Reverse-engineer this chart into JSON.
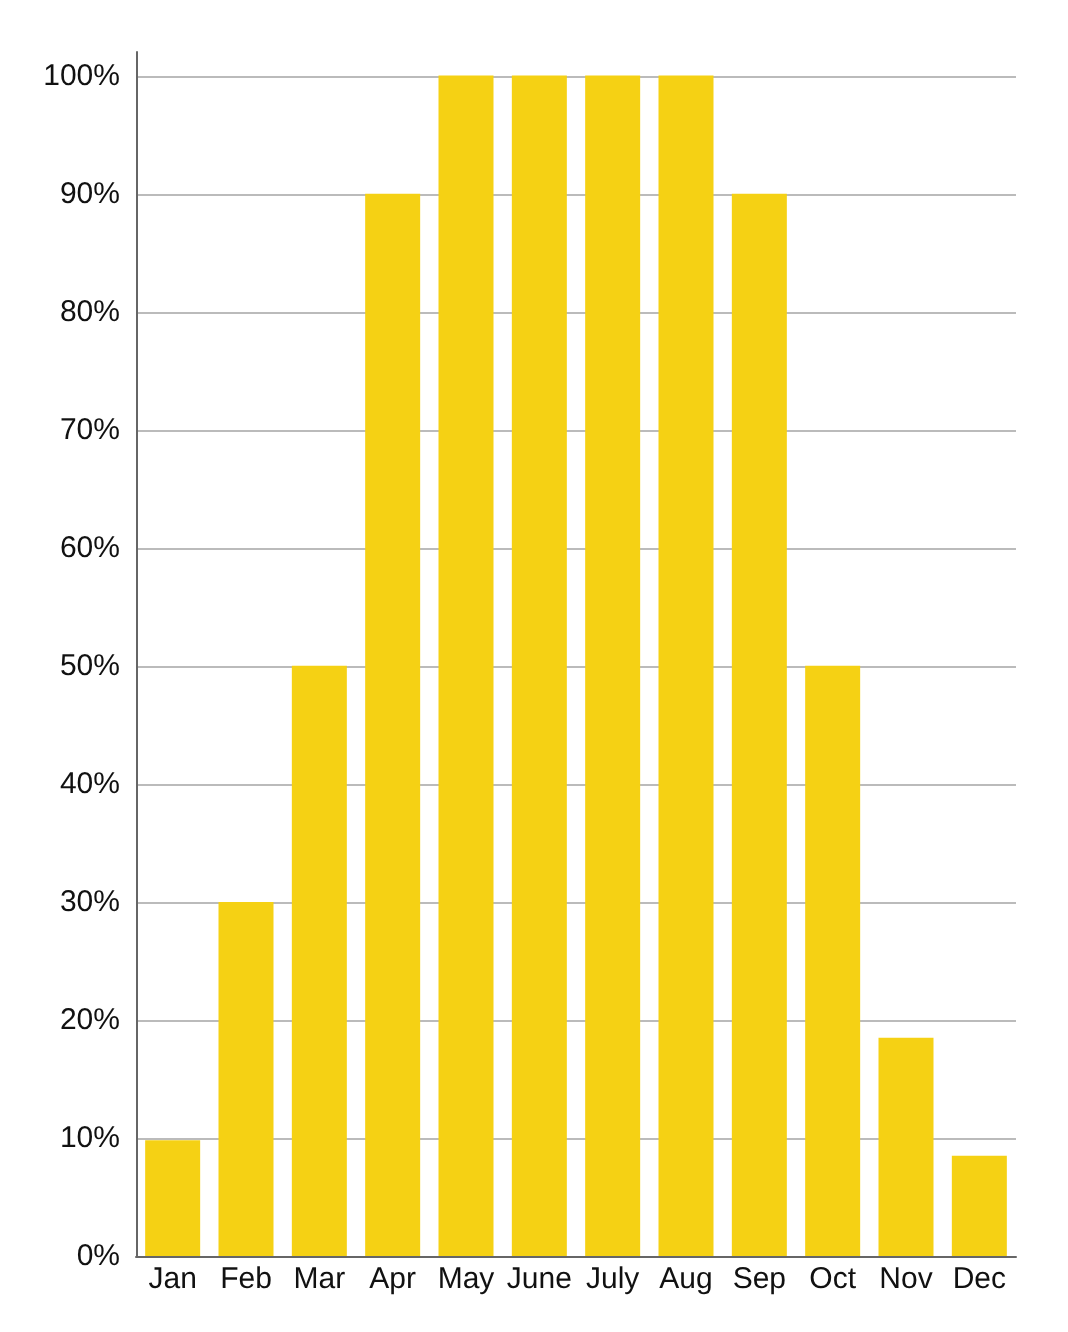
{
  "chart_data": {
    "type": "bar",
    "categories": [
      "Jan",
      "Feb",
      "Mar",
      "Apr",
      "May",
      "June",
      "July",
      "Aug",
      "Sep",
      "Oct",
      "Nov",
      "Dec"
    ],
    "values": [
      9.8,
      30,
      50,
      90,
      100,
      100,
      100,
      100,
      90,
      50,
      18.5,
      8.5
    ],
    "color": "#f5d114",
    "ylim": [
      0,
      102
    ],
    "yticks": [
      {
        "value": 0,
        "label": "0%"
      },
      {
        "value": 10,
        "label": "10%"
      },
      {
        "value": 20,
        "label": "20%"
      },
      {
        "value": 30,
        "label": "30%"
      },
      {
        "value": 40,
        "label": "40%"
      },
      {
        "value": 50,
        "label": "50%"
      },
      {
        "value": 60,
        "label": "60%"
      },
      {
        "value": 70,
        "label": "70%"
      },
      {
        "value": 80,
        "label": "80%"
      },
      {
        "value": 90,
        "label": "90%"
      },
      {
        "value": 100,
        "label": "100%"
      }
    ],
    "grid": "y"
  }
}
